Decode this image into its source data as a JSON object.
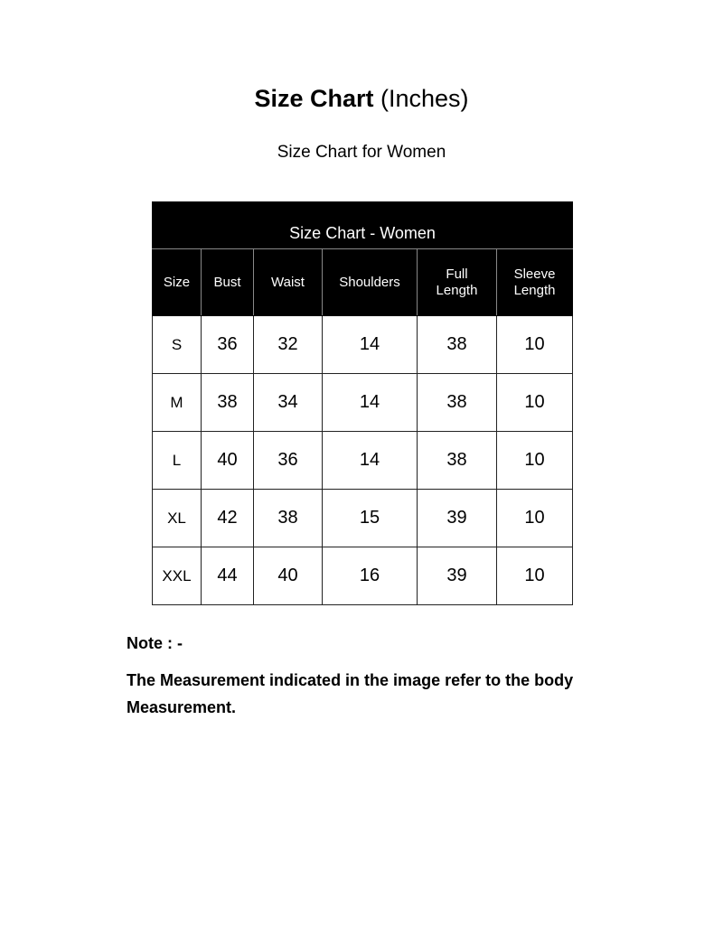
{
  "title": {
    "bold": "Size Chart",
    "normal": "(Inches)"
  },
  "subtitle": "Size Chart for Women",
  "table": {
    "caption": "Size Chart - Women",
    "headers": [
      [
        "Size"
      ],
      [
        "Bust"
      ],
      [
        "Waist"
      ],
      [
        "Shoulders"
      ],
      [
        "Full",
        "Length"
      ],
      [
        "Sleeve",
        "Length"
      ]
    ],
    "rows": [
      [
        "S",
        "36",
        "32",
        "14",
        "38",
        "10"
      ],
      [
        "M",
        "38",
        "34",
        "14",
        "38",
        "10"
      ],
      [
        "L",
        "40",
        "36",
        "14",
        "38",
        "10"
      ],
      [
        "XL",
        "42",
        "38",
        "15",
        "39",
        "10"
      ],
      [
        "XXL",
        "44",
        "40",
        "16",
        "39",
        "10"
      ]
    ]
  },
  "note": {
    "label": "Note : -",
    "text": "The Measurement indicated in the image refer to the body Measurement."
  }
}
